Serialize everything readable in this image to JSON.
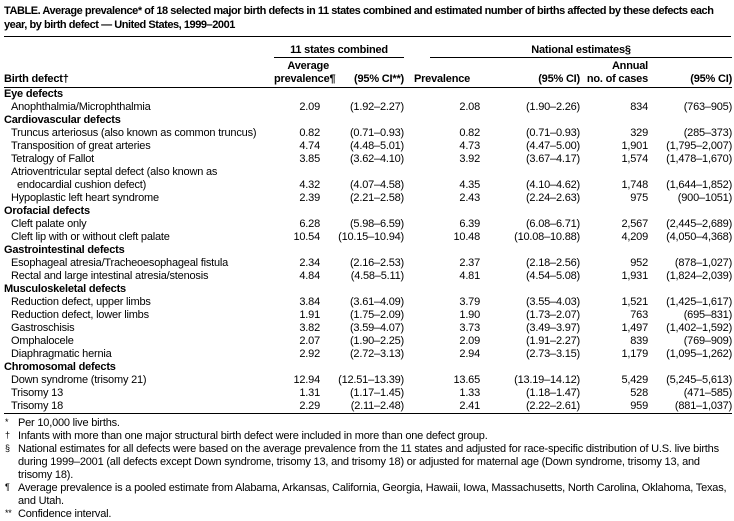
{
  "title": "TABLE. Average prevalence* of 18 selected major birth defects in 11 states combined and estimated number of births affected by these defects each year, by birth defect — United States, 1999–2001",
  "table": {
    "group_header_left": "11 states combined",
    "group_header_right": "National estimates§",
    "col_headers": {
      "birth_defect": "Birth defect†",
      "avg_prevalence_line1": "Average",
      "avg_prevalence_line2": "prevalence¶",
      "avg_ci": "(95% CI**)",
      "prevalence": "Prevalence",
      "ci": "(95% CI)",
      "annual_line1": "Annual",
      "annual_line2": "no. of cases",
      "ci2": "(95% CI)"
    },
    "sections": [
      {
        "name": "Eye defects",
        "rows": [
          [
            "Anophthalmia/Microphthalmia",
            "2.09",
            "(1.92–2.27)",
            "2.08",
            "(1.90–2.26)",
            "834",
            "(763–905)"
          ]
        ]
      },
      {
        "name": "Cardiovascular defects",
        "rows": [
          [
            "Truncus arteriosus (also known as common truncus)",
            "0.82",
            "(0.71–0.93)",
            "0.82",
            "(0.71–0.93)",
            "329",
            "(285–373)"
          ],
          [
            "Transposition of great arteries",
            "4.74",
            "(4.48–5.01)",
            "4.73",
            "(4.47–5.00)",
            "1,901",
            "(1,795–2,007)"
          ],
          [
            "Tetralogy of Fallot",
            "3.85",
            "(3.62–4.10)",
            "3.92",
            "(3.67–4.17)",
            "1,574",
            "(1,478–1,670)"
          ],
          {
            "label_lines": [
              "Atrioventricular septal defect (also known as",
              "endocardial cushion defect)"
            ],
            "values": [
              "4.32",
              "(4.07–4.58)",
              "4.35",
              "(4.10–4.62)",
              "1,748",
              "(1,644–1,852)"
            ]
          },
          [
            "Hypoplastic left heart syndrome",
            "2.39",
            "(2.21–2.58)",
            "2.43",
            "(2.24–2.63)",
            "975",
            "(900–1051)"
          ]
        ]
      },
      {
        "name": "Orofacial defects",
        "rows": [
          [
            "Cleft palate only",
            "6.28",
            "(5.98–6.59)",
            "6.39",
            "(6.08–6.71)",
            "2,567",
            "(2,445–2,689)"
          ],
          [
            "Cleft lip with or without cleft palate",
            "10.54",
            "(10.15–10.94)",
            "10.48",
            "(10.08–10.88)",
            "4,209",
            "(4,050–4,368)"
          ]
        ]
      },
      {
        "name": "Gastrointestinal defects",
        "rows": [
          [
            "Esophageal atresia/Tracheoesophageal fistula",
            "2.34",
            "(2.16–2.53)",
            "2.37",
            "(2.18–2.56)",
            "952",
            "(878–1,027)"
          ],
          [
            "Rectal and large intestinal atresia/stenosis",
            "4.84",
            "(4.58–5.11)",
            "4.81",
            "(4.54–5.08)",
            "1,931",
            "(1,824–2,039)"
          ]
        ]
      },
      {
        "name": "Musculoskeletal defects",
        "rows": [
          [
            "Reduction defect, upper limbs",
            "3.84",
            "(3.61–4.09)",
            "3.79",
            "(3.55–4.03)",
            "1,521",
            "(1,425–1,617)"
          ],
          [
            "Reduction defect, lower limbs",
            "1.91",
            "(1.75–2.09)",
            "1.90",
            "(1.73–2.07)",
            "763",
            "(695–831)"
          ],
          [
            "Gastroschisis",
            "3.82",
            "(3.59–4.07)",
            "3.73",
            "(3.49–3.97)",
            "1,497",
            "(1,402–1,592)"
          ],
          [
            "Omphalocele",
            "2.07",
            "(1.90–2.25)",
            "2.09",
            "(1.91–2.27)",
            "839",
            "(769–909)"
          ],
          [
            "Diaphragmatic hernia",
            "2.92",
            "(2.72–3.13)",
            "2.94",
            "(2.73–3.15)",
            "1,179",
            "(1,095–1,262)"
          ]
        ]
      },
      {
        "name": "Chromosomal defects",
        "rows": [
          [
            "Down syndrome (trisomy 21)",
            "12.94",
            "(12.51–13.39)",
            "13.65",
            "(13.19–14.12)",
            "5,429",
            "(5,245–5,613)"
          ],
          [
            "Trisomy 13",
            "1.31",
            "(1.17–1.45)",
            "1.33",
            "(1.18–1.47)",
            "528",
            "(471–585)"
          ],
          [
            "Trisomy 18",
            "2.29",
            "(2.11–2.48)",
            "2.41",
            "(2.22–2.61)",
            "959",
            "(881–1,037)"
          ]
        ]
      }
    ]
  },
  "footnotes": [
    {
      "marker": "*",
      "text": "Per 10,000 live births."
    },
    {
      "marker": "†",
      "text": "Infants with more than one major structural birth defect were included in more than one defect group."
    },
    {
      "marker": "§",
      "text": "National estimates for all defects were based on the average prevalence from the 11 states and adjusted for race-specific distribution of U.S. live births during 1999–2001 (all defects except Down syndrome, trisomy 13, and trisomy 18) or adjusted for maternal age (Down syndrome, trisomy 13, and trisomy 18)."
    },
    {
      "marker": "¶",
      "text": "Average prevalence is a pooled estimate from Alabama, Arkansas, California, Georgia, Hawaii, Iowa, Massachusetts, North Carolina, Oklahoma, Texas, and Utah."
    },
    {
      "marker": "**",
      "text": "Confidence interval."
    }
  ]
}
